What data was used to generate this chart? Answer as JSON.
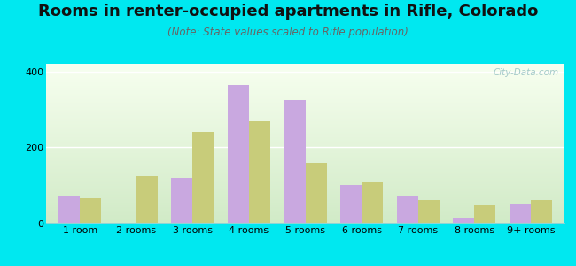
{
  "title": "Rooms in renter-occupied apartments in Rifle, Colorado",
  "subtitle": "(Note: State values scaled to Rifle population)",
  "categories": [
    "1 room",
    "2 rooms",
    "3 rooms",
    "4 rooms",
    "5 rooms",
    "6 rooms",
    "7 rooms",
    "8 rooms",
    "9+ rooms"
  ],
  "rifle_values": [
    72,
    0,
    120,
    365,
    325,
    100,
    72,
    13,
    52
  ],
  "colorado_values": [
    68,
    125,
    240,
    268,
    158,
    110,
    62,
    48,
    60
  ],
  "rifle_color": "#c9a8e0",
  "colorado_color": "#c8cc7a",
  "outer_bg": "#00e8f0",
  "plot_bg_top": "#f4faf0",
  "plot_bg_bottom": "#d0e8c8",
  "ylim": [
    0,
    420
  ],
  "yticks": [
    0,
    200,
    400
  ],
  "title_fontsize": 13,
  "subtitle_fontsize": 8.5,
  "legend_fontsize": 10,
  "tick_fontsize": 8,
  "bar_width": 0.38,
  "watermark_text": "City-Data.com"
}
